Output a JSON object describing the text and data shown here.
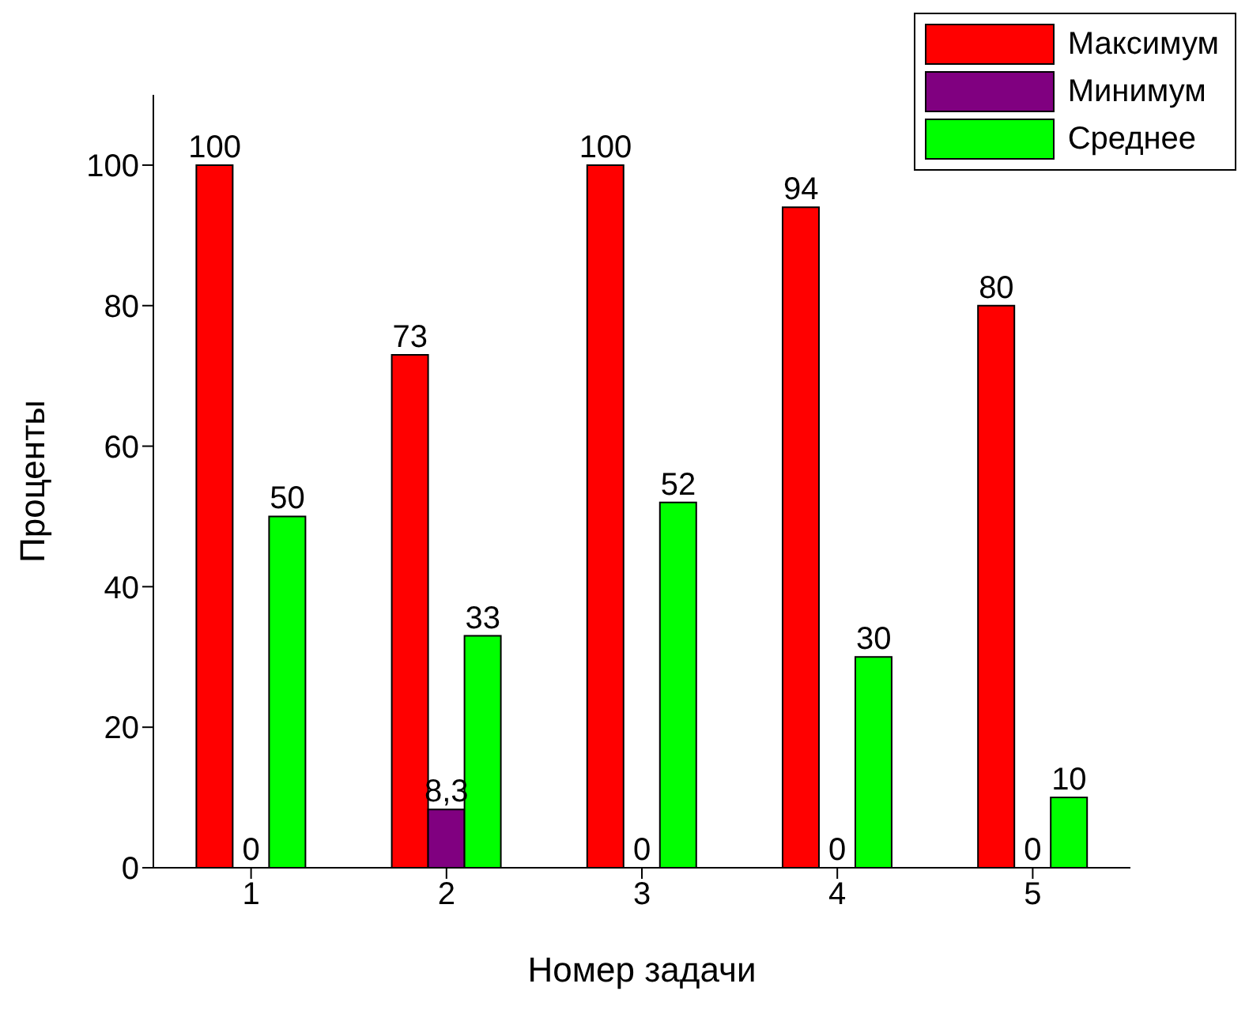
{
  "chart_data": {
    "type": "bar",
    "xlabel": "Номер задачи",
    "ylabel": "Проценты",
    "categories": [
      "1",
      "2",
      "3",
      "4",
      "5"
    ],
    "series": [
      {
        "name": "Максимум",
        "color": "#ff0000",
        "values": [
          100,
          73,
          100,
          94,
          80
        ],
        "value_labels": [
          "100",
          "73",
          "100",
          "94",
          "80"
        ]
      },
      {
        "name": "Минимум",
        "color": "#800080",
        "values": [
          0,
          8.3,
          0,
          0,
          0
        ],
        "value_labels": [
          "0",
          "8,3",
          "0",
          "0",
          "0"
        ]
      },
      {
        "name": "Среднее",
        "color": "#00ff00",
        "values": [
          50,
          33,
          52,
          30,
          10
        ],
        "value_labels": [
          "50",
          "33",
          "52",
          "30",
          "10"
        ]
      }
    ],
    "ylim": [
      0,
      110
    ],
    "yticks": [
      0,
      20,
      40,
      60,
      80,
      100
    ],
    "grid": false,
    "legend": "top right"
  }
}
